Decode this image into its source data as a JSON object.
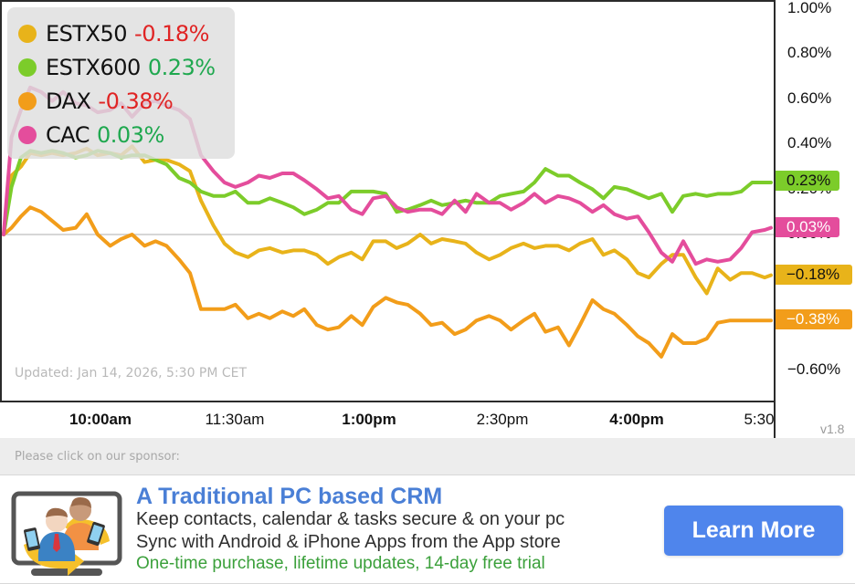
{
  "chart": {
    "legend": [
      {
        "name": "ESTX50",
        "change": "-0.18%",
        "color": "#e8b31a",
        "sign": "neg"
      },
      {
        "name": "ESTX600",
        "change": "0.23%",
        "color": "#7ccc2a",
        "sign": "pos"
      },
      {
        "name": "DAX",
        "change": "-0.38%",
        "color": "#f29d1a",
        "sign": "neg"
      },
      {
        "name": "CAC",
        "change": "0.03%",
        "color": "#e44d9c",
        "sign": "pos"
      }
    ],
    "y_ticks": [
      "1.00%",
      "0.80%",
      "0.60%",
      "0.40%",
      "0.20%",
      "0.00%",
      "−0.60%"
    ],
    "badges": [
      {
        "label": "0.23%",
        "bg": "#7ccc2a",
        "fg": "#111111"
      },
      {
        "label": "0.03%",
        "bg": "#e44d9c",
        "fg": "#ffffff"
      },
      {
        "label": "−0.18%",
        "bg": "#e8b31a",
        "fg": "#111111"
      },
      {
        "label": "−0.38%",
        "bg": "#f29d1a",
        "fg": "#ffffff"
      }
    ],
    "x_ticks": [
      {
        "label": "10:00am",
        "bold": true
      },
      {
        "label": "11:30am",
        "bold": false
      },
      {
        "label": "1:00pm",
        "bold": true
      },
      {
        "label": "2:30pm",
        "bold": false
      },
      {
        "label": "4:00pm",
        "bold": true
      },
      {
        "label": "5:30",
        "bold": false
      }
    ],
    "updated": "Updated: Jan 14, 2026, 5:30 PM CET",
    "version": "v1.8"
  },
  "sponsor": {
    "label": "Please click on our sponsor:",
    "ad": {
      "title": "A Traditional PC based CRM",
      "line1": "Keep contacts, calendar & tasks secure & on your pc",
      "line2": "Sync with Android & iPhone Apps from the App store",
      "line3": "One-time purchase, lifetime updates, 14-day free trial",
      "button": "Learn More",
      "image_icon": "crm-people-monitor-icon"
    }
  },
  "chart_data": {
    "type": "line",
    "title": "",
    "xlabel": "",
    "ylabel": "",
    "x_unit": "minutes after 9:00am",
    "x_ticks": [
      "10:00am",
      "11:30am",
      "1:00pm",
      "2:30pm",
      "4:00pm",
      "5:30"
    ],
    "y_ticks": [
      "1.00%",
      "0.80%",
      "0.60%",
      "0.40%",
      "0.20%",
      "0.00%",
      "-0.60%"
    ],
    "ylim": [
      -0.72,
      1.03
    ],
    "grid": "zero line only",
    "legend_position": "top-left",
    "final_values": {
      "ESTX50": -0.18,
      "ESTX600": 0.23,
      "DAX": -0.38,
      "CAC": 0.03
    },
    "x": [
      0,
      5,
      11,
      17,
      24,
      31,
      38,
      46,
      53,
      60,
      68,
      75,
      82,
      90,
      97,
      104,
      112,
      119,
      126,
      134,
      141,
      148,
      156,
      163,
      170,
      178,
      185,
      192,
      200,
      207,
      214,
      222,
      229,
      236,
      244,
      251,
      258,
      266,
      273,
      280,
      288,
      295,
      302,
      310,
      317,
      324,
      332,
      339,
      346,
      354,
      361,
      368,
      376,
      383,
      390,
      398,
      405,
      412,
      420,
      427,
      434,
      442,
      449,
      456,
      464,
      471,
      478,
      486,
      490
    ],
    "series": [
      {
        "name": "ESTX50",
        "color": "#e8b31a",
        "values": [
          0.0,
          0.26,
          0.3,
          0.36,
          0.35,
          0.36,
          0.35,
          0.36,
          0.38,
          0.35,
          0.36,
          0.35,
          0.39,
          0.32,
          0.33,
          0.33,
          0.31,
          0.28,
          0.15,
          0.04,
          -0.04,
          -0.08,
          -0.1,
          -0.07,
          -0.06,
          -0.08,
          -0.07,
          -0.07,
          -0.09,
          -0.13,
          -0.1,
          -0.08,
          -0.11,
          -0.03,
          -0.03,
          -0.06,
          -0.04,
          0.0,
          -0.04,
          -0.02,
          -0.03,
          -0.04,
          -0.08,
          -0.11,
          -0.09,
          -0.06,
          -0.04,
          -0.06,
          -0.05,
          -0.05,
          -0.07,
          -0.04,
          -0.02,
          -0.09,
          -0.07,
          -0.11,
          -0.17,
          -0.19,
          -0.13,
          -0.09,
          -0.09,
          -0.19,
          -0.26,
          -0.15,
          -0.2,
          -0.17,
          -0.17,
          -0.19,
          -0.18
        ]
      },
      {
        "name": "ESTX600",
        "color": "#7ccc2a",
        "values": [
          0.0,
          0.21,
          0.34,
          0.37,
          0.36,
          0.37,
          0.36,
          0.34,
          0.35,
          0.37,
          0.36,
          0.34,
          0.35,
          0.35,
          0.33,
          0.31,
          0.25,
          0.23,
          0.19,
          0.17,
          0.17,
          0.19,
          0.14,
          0.14,
          0.16,
          0.14,
          0.12,
          0.09,
          0.11,
          0.14,
          0.14,
          0.19,
          0.19,
          0.19,
          0.18,
          0.1,
          0.11,
          0.13,
          0.15,
          0.13,
          0.14,
          0.15,
          0.14,
          0.14,
          0.17,
          0.18,
          0.19,
          0.23,
          0.29,
          0.26,
          0.26,
          0.23,
          0.2,
          0.16,
          0.21,
          0.2,
          0.18,
          0.16,
          0.18,
          0.1,
          0.17,
          0.18,
          0.17,
          0.18,
          0.18,
          0.19,
          0.23,
          0.23,
          0.23
        ]
      },
      {
        "name": "DAX",
        "color": "#f29d1a",
        "values": [
          0.0,
          0.03,
          0.08,
          0.12,
          0.1,
          0.06,
          0.02,
          0.03,
          0.09,
          0.0,
          -0.05,
          -0.02,
          0.0,
          -0.05,
          -0.03,
          -0.05,
          -0.11,
          -0.17,
          -0.33,
          -0.33,
          -0.33,
          -0.31,
          -0.37,
          -0.35,
          -0.37,
          -0.34,
          -0.36,
          -0.33,
          -0.4,
          -0.42,
          -0.41,
          -0.36,
          -0.4,
          -0.32,
          -0.28,
          -0.3,
          -0.31,
          -0.35,
          -0.4,
          -0.39,
          -0.44,
          -0.42,
          -0.38,
          -0.36,
          -0.38,
          -0.42,
          -0.38,
          -0.35,
          -0.43,
          -0.41,
          -0.49,
          -0.4,
          -0.29,
          -0.33,
          -0.35,
          -0.4,
          -0.45,
          -0.48,
          -0.54,
          -0.44,
          -0.48,
          -0.48,
          -0.46,
          -0.39,
          -0.38,
          -0.38,
          -0.38,
          -0.38,
          -0.38
        ]
      },
      {
        "name": "CAC",
        "color": "#e44d9c",
        "values": [
          0.0,
          0.43,
          0.55,
          0.65,
          0.63,
          0.59,
          0.63,
          0.58,
          0.57,
          0.54,
          0.55,
          0.58,
          0.52,
          0.58,
          0.59,
          0.57,
          0.55,
          0.51,
          0.35,
          0.28,
          0.23,
          0.21,
          0.23,
          0.26,
          0.25,
          0.27,
          0.27,
          0.24,
          0.2,
          0.16,
          0.17,
          0.11,
          0.09,
          0.16,
          0.17,
          0.12,
          0.1,
          0.11,
          0.11,
          0.09,
          0.15,
          0.1,
          0.18,
          0.14,
          0.14,
          0.11,
          0.14,
          0.18,
          0.14,
          0.17,
          0.16,
          0.14,
          0.1,
          0.13,
          0.09,
          0.07,
          0.08,
          0.01,
          -0.08,
          -0.12,
          -0.03,
          -0.13,
          -0.11,
          -0.12,
          -0.11,
          -0.06,
          0.01,
          0.02,
          0.03
        ]
      }
    ]
  }
}
